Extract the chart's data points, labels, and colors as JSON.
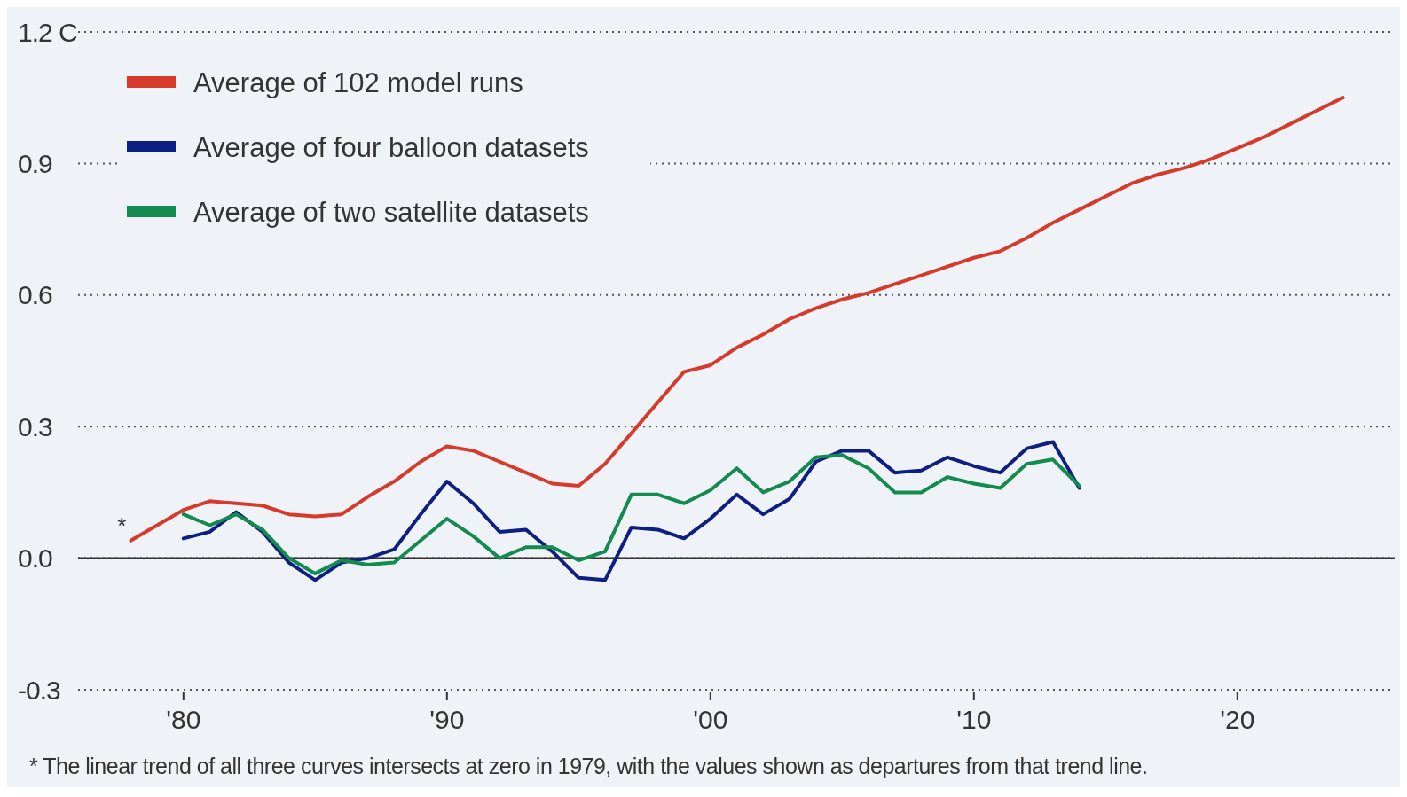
{
  "chart_data": {
    "type": "line",
    "x": [
      1978,
      1979,
      1980,
      1981,
      1982,
      1983,
      1984,
      1985,
      1986,
      1987,
      1988,
      1989,
      1990,
      1991,
      1992,
      1993,
      1994,
      1995,
      1996,
      1997,
      1998,
      1999,
      2000,
      2001,
      2002,
      2003,
      2004,
      2005,
      2006,
      2007,
      2008,
      2009,
      2010,
      2011,
      2012,
      2013,
      2014,
      2015,
      2016,
      2017,
      2018,
      2019,
      2020,
      2021,
      2022,
      2023,
      2024
    ],
    "series": [
      {
        "name": "Average of 102 model runs",
        "color": "#d63a2a",
        "values": [
          0.04,
          0.075,
          0.11,
          0.13,
          0.125,
          0.12,
          0.1,
          0.095,
          0.1,
          0.14,
          0.175,
          0.22,
          0.255,
          0.245,
          0.22,
          0.195,
          0.17,
          0.165,
          0.215,
          0.285,
          0.355,
          0.425,
          0.44,
          0.48,
          0.51,
          0.545,
          0.57,
          0.59,
          0.605,
          0.625,
          0.645,
          0.665,
          0.685,
          0.7,
          0.73,
          0.765,
          0.795,
          0.825,
          0.855,
          0.875,
          0.89,
          0.91,
          0.935,
          0.96,
          0.99,
          1.02,
          1.05
        ]
      },
      {
        "name": "Average of four balloon datasets",
        "color": "#0d1f80",
        "values": [
          null,
          null,
          0.045,
          0.06,
          0.105,
          0.06,
          -0.01,
          -0.05,
          -0.01,
          0.0,
          0.02,
          0.1,
          0.175,
          0.125,
          0.06,
          0.065,
          0.015,
          -0.045,
          -0.05,
          0.07,
          0.065,
          0.045,
          0.09,
          0.145,
          0.1,
          0.135,
          0.22,
          0.245,
          0.245,
          0.195,
          0.2,
          0.23,
          0.21,
          0.195,
          0.25,
          0.265,
          0.16,
          null,
          null,
          null,
          null,
          null,
          null,
          null,
          null,
          null,
          null
        ]
      },
      {
        "name": "Average of two satellite datasets",
        "color": "#138a4f",
        "values": [
          null,
          null,
          0.1,
          0.075,
          0.1,
          0.065,
          0.0,
          -0.035,
          -0.005,
          -0.015,
          -0.01,
          0.04,
          0.09,
          0.05,
          0.0,
          0.025,
          0.025,
          -0.005,
          0.015,
          0.145,
          0.145,
          0.125,
          0.155,
          0.205,
          0.15,
          0.175,
          0.23,
          0.235,
          0.205,
          0.15,
          0.15,
          0.185,
          0.17,
          0.16,
          0.215,
          0.225,
          0.165,
          null,
          null,
          null,
          null,
          null,
          null,
          null,
          null,
          null,
          null
        ]
      }
    ],
    "xlim": [
      1976,
      2026
    ],
    "xticks": [
      {
        "value": 1980,
        "label": "'80"
      },
      {
        "value": 1990,
        "label": "'90"
      },
      {
        "value": 2000,
        "label": "'00"
      },
      {
        "value": 2010,
        "label": "'10"
      },
      {
        "value": 2020,
        "label": "'20"
      }
    ],
    "ylim": [
      -0.3,
      1.2
    ],
    "yticks": [
      -0.3,
      {
        "value": 0,
        "label": "0.0"
      },
      0.3,
      0.6,
      0.9,
      {
        "value": 1.2,
        "label": "1.2 C"
      }
    ],
    "ref_lines": [
      {
        "axis": "y",
        "value": 0,
        "color": "#333333",
        "line_style": "solid"
      }
    ],
    "grid": "y",
    "legend": "top left",
    "line_style": "solid",
    "marker": "none",
    "annotations": [
      {
        "text": "*",
        "x": 1978,
        "y": 0.04
      },
      "* The linear trend of all three curves intersects at zero in 1979, with the values shown as departures from that trend line."
    ]
  }
}
